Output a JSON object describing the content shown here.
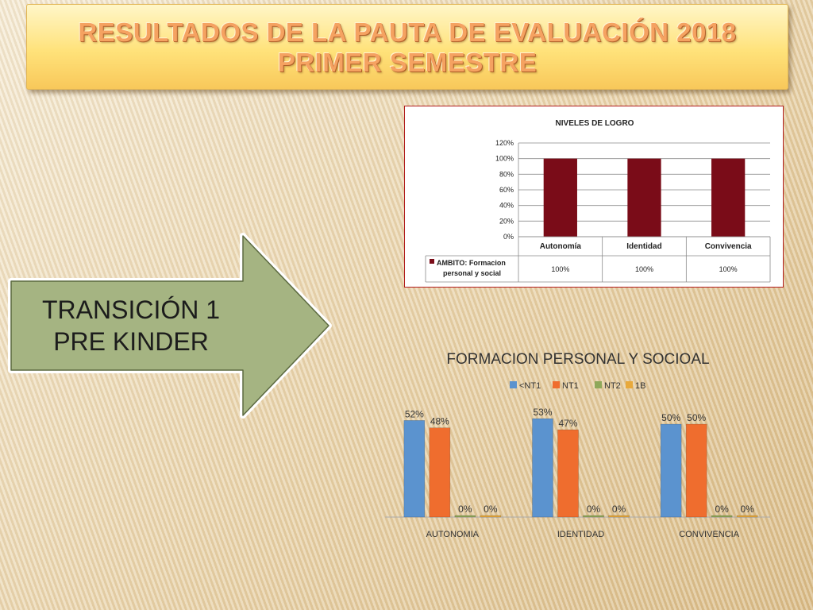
{
  "slide": {
    "title_line_1": "RESULTADOS DE LA PAUTA DE EVALUACIÓN 2018",
    "title_line_2": "PRIMER SEMESTRE"
  },
  "arrow": {
    "line_1": "TRANSICIÓN 1",
    "line_2": "PRE KINDER"
  },
  "colors": {
    "title_text": "#f5a261",
    "arrow_fill": "#a5b482",
    "chart1_bar": "#7a0c18",
    "chart1_border": "#b11c1c",
    "series_blue": "#5b93cf",
    "series_orange": "#ef6d2e",
    "series_green": "#8fa85a",
    "series_yellow": "#e8a93b"
  },
  "chart_data": [
    {
      "type": "bar",
      "title": "NIVELES DE LOGRO",
      "categories": [
        "Autonomía",
        "Identidad",
        "Convivencia"
      ],
      "series": [
        {
          "name": "AMBITO: Formacion personal y social",
          "values": [
            100,
            100,
            100
          ],
          "labels": [
            "100%",
            "100%",
            "100%"
          ]
        }
      ],
      "yticks": [
        "0%",
        "20%",
        "40%",
        "60%",
        "80%",
        "100%",
        "120%"
      ],
      "ylim": [
        0,
        120
      ],
      "grid": true,
      "legend": "data-table",
      "data_table": true
    },
    {
      "type": "bar",
      "title": "FORMACION PERSONAL Y SOCIOAL",
      "categories": [
        "AUTONOMIA",
        "IDENTIDAD",
        "CONVIVENCIA"
      ],
      "series": [
        {
          "name": "<NT1",
          "values": [
            52,
            53,
            50
          ],
          "labels": [
            "52%",
            "53%",
            "50%"
          ]
        },
        {
          "name": "NT1",
          "values": [
            48,
            47,
            50
          ],
          "labels": [
            "48%",
            "47%",
            "50%"
          ]
        },
        {
          "name": "NT2",
          "values": [
            0,
            0,
            0
          ],
          "labels": [
            "0%",
            "0%",
            "0%"
          ]
        },
        {
          "name": "1B",
          "values": [
            0,
            0,
            0
          ],
          "labels": [
            "0%",
            "0%",
            "0%"
          ]
        }
      ],
      "ylim": [
        0,
        60
      ],
      "grid": false,
      "legend": "top"
    }
  ]
}
